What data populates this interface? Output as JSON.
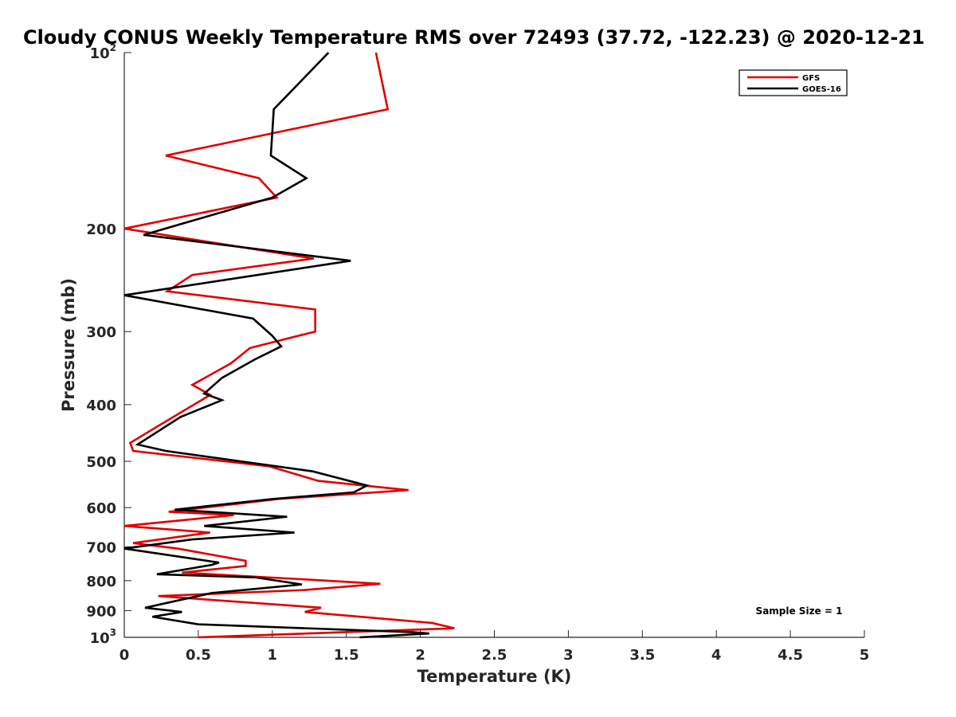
{
  "chart_data": {
    "type": "line",
    "title": "Cloudy CONUS Weekly Temperature RMS over 72493 (37.72, -122.23) @ 2020-12-21",
    "xlabel": "Temperature (K)",
    "ylabel": "Pressure (mb)",
    "xlim": [
      0,
      5
    ],
    "ylim": [
      100,
      1000
    ],
    "y_scale": "log",
    "y_reversed": true,
    "grid": false,
    "legend_position": "top-right",
    "x_ticks": [
      "0",
      "0.5",
      "1",
      "1.5",
      "2",
      "2.5",
      "3",
      "3.5",
      "4",
      "4.5",
      "5"
    ],
    "y_ticks": [
      {
        "value": 100,
        "base": "10",
        "exp": "2"
      },
      {
        "value": 200,
        "label": "200"
      },
      {
        "value": 300,
        "label": "300"
      },
      {
        "value": 400,
        "label": "400"
      },
      {
        "value": 500,
        "label": "500"
      },
      {
        "value": 600,
        "label": "600"
      },
      {
        "value": 700,
        "label": "700"
      },
      {
        "value": 800,
        "label": "800"
      },
      {
        "value": 900,
        "label": "900"
      },
      {
        "value": 1000,
        "base": "10",
        "exp": "3"
      }
    ],
    "annotation": "Sample Size = 1",
    "series": [
      {
        "name": "GFS",
        "color": "#e00000",
        "points": [
          [
            1.7,
            100
          ],
          [
            1.78,
            125
          ],
          [
            0.28,
            150
          ],
          [
            0.91,
            164
          ],
          [
            1.03,
            177
          ],
          [
            0.0,
            200
          ],
          [
            1.28,
            225
          ],
          [
            0.46,
            240
          ],
          [
            0.29,
            256
          ],
          [
            1.29,
            275
          ],
          [
            1.29,
            300
          ],
          [
            0.85,
            320
          ],
          [
            0.72,
            340
          ],
          [
            0.46,
            370
          ],
          [
            0.58,
            385
          ],
          [
            0.23,
            435
          ],
          [
            0.04,
            465
          ],
          [
            0.06,
            480
          ],
          [
            0.98,
            510
          ],
          [
            1.31,
            540
          ],
          [
            1.92,
            560
          ],
          [
            1.04,
            580
          ],
          [
            0.3,
            610
          ],
          [
            0.74,
            618
          ],
          [
            0.0,
            645
          ],
          [
            0.58,
            662
          ],
          [
            0.06,
            690
          ],
          [
            0.36,
            705
          ],
          [
            0.82,
            740
          ],
          [
            0.82,
            755
          ],
          [
            0.39,
            775
          ],
          [
            1.18,
            795
          ],
          [
            1.73,
            810
          ],
          [
            1.22,
            830
          ],
          [
            0.23,
            850
          ],
          [
            1.33,
            890
          ],
          [
            1.22,
            905
          ],
          [
            2.08,
            945
          ],
          [
            2.23,
            965
          ],
          [
            0.5,
            1000
          ]
        ]
      },
      {
        "name": "GOES-16",
        "color": "#000000",
        "points": [
          [
            1.38,
            100
          ],
          [
            1.01,
            125
          ],
          [
            0.99,
            150
          ],
          [
            1.23,
            164
          ],
          [
            1.0,
            177
          ],
          [
            0.13,
            205
          ],
          [
            1.53,
            227
          ],
          [
            0.0,
            260
          ],
          [
            0.87,
            285
          ],
          [
            1.0,
            305
          ],
          [
            1.06,
            318
          ],
          [
            0.88,
            335
          ],
          [
            0.66,
            360
          ],
          [
            0.54,
            383
          ],
          [
            0.66,
            393
          ],
          [
            0.38,
            420
          ],
          [
            0.09,
            468
          ],
          [
            0.28,
            480
          ],
          [
            1.27,
            520
          ],
          [
            1.64,
            550
          ],
          [
            1.55,
            565
          ],
          [
            1.0,
            580
          ],
          [
            0.34,
            605
          ],
          [
            1.1,
            622
          ],
          [
            0.54,
            645
          ],
          [
            1.15,
            662
          ],
          [
            0.46,
            680
          ],
          [
            0.0,
            705
          ],
          [
            0.64,
            745
          ],
          [
            0.59,
            752
          ],
          [
            0.22,
            780
          ],
          [
            0.89,
            790
          ],
          [
            1.2,
            812
          ],
          [
            0.59,
            840
          ],
          [
            0.14,
            890
          ],
          [
            0.39,
            905
          ],
          [
            0.19,
            922
          ],
          [
            0.5,
            950
          ],
          [
            1.95,
            980
          ],
          [
            2.06,
            985
          ],
          [
            1.59,
            1000
          ]
        ]
      }
    ]
  }
}
